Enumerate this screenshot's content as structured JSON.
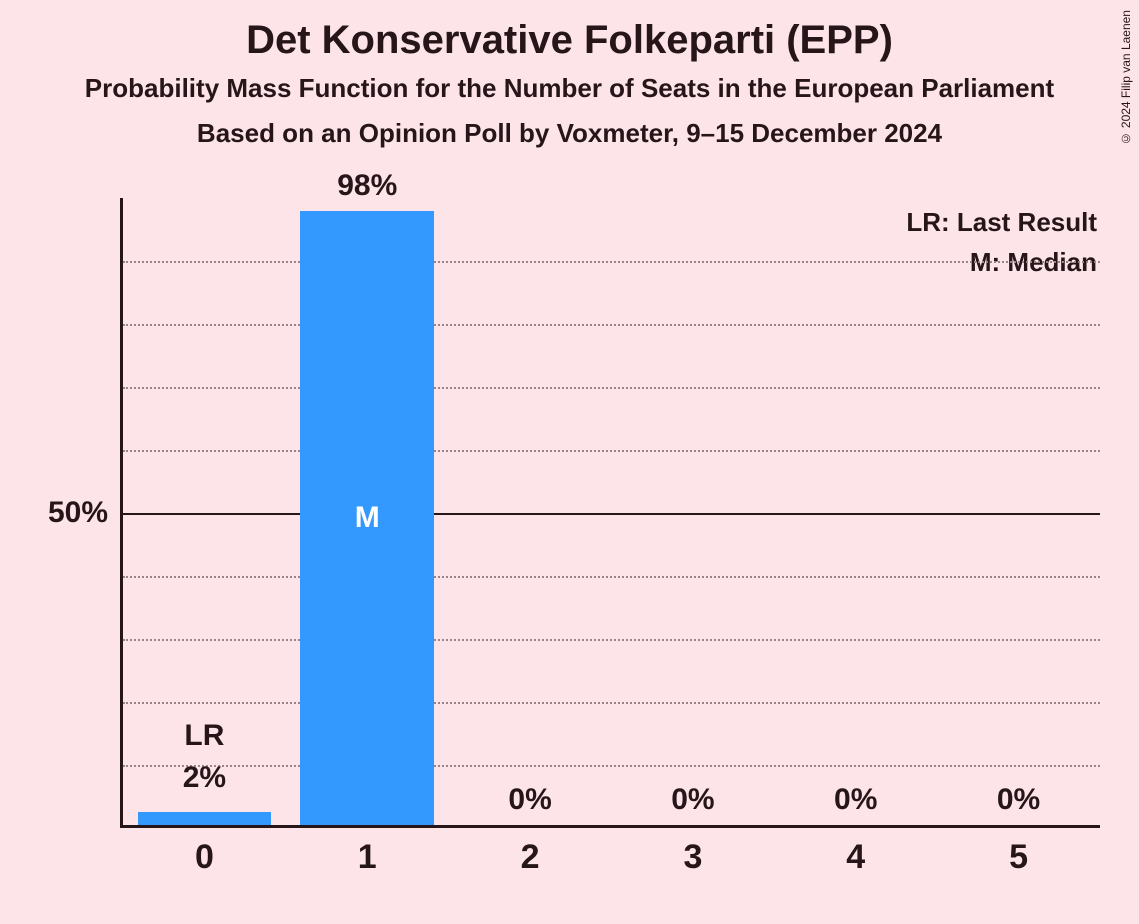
{
  "title": "Det Konservative Folkeparti (EPP)",
  "subtitle1": "Probability Mass Function for the Number of Seats in the European Parliament",
  "subtitle2": "Based on an Opinion Poll by Voxmeter, 9–15 December 2024",
  "copyright": "© 2024 Filip van Laenen",
  "chart": {
    "type": "bar",
    "background_color": "#fce4e8",
    "bar_color": "#3399ff",
    "text_color": "#261519",
    "median_text_color": "#ffffff",
    "grid_minor_color": "#9b8488",
    "x_categories": [
      "0",
      "1",
      "2",
      "3",
      "4",
      "5"
    ],
    "bars": [
      {
        "value": 2,
        "label": "2%",
        "isLR": true,
        "isMedian": false
      },
      {
        "value": 98,
        "label": "98%",
        "isLR": false,
        "isMedian": true
      },
      {
        "value": 0,
        "label": "0%",
        "isLR": false,
        "isMedian": false
      },
      {
        "value": 0,
        "label": "0%",
        "isLR": false,
        "isMedian": false
      },
      {
        "value": 0,
        "label": "0%",
        "isLR": false,
        "isMedian": false
      },
      {
        "value": 0,
        "label": "0%",
        "isLR": false,
        "isMedian": false
      }
    ],
    "y_axis": {
      "max": 100,
      "minor_step": 10,
      "major_ticks": [
        50
      ],
      "tick_labels": {
        "50": "50%"
      }
    },
    "legend": {
      "lr": "LR: Last Result",
      "m": "M: Median"
    },
    "lr_marker": "LR",
    "m_marker": "M"
  }
}
